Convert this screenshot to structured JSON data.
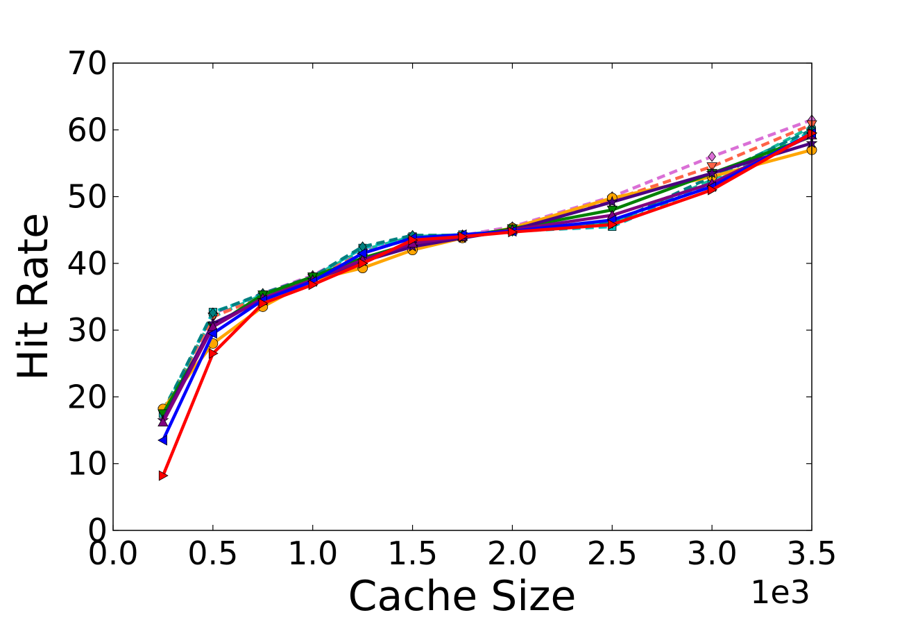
{
  "chart_data": {
    "type": "line",
    "title": "",
    "xlabel": "Cache Size",
    "ylabel": "Hit Rate",
    "x_offset_label": "1e3",
    "xlim": [
      0.0,
      3.5
    ],
    "ylim": [
      0,
      70
    ],
    "x_ticks": [
      "0.0",
      "0.5",
      "1.0",
      "1.5",
      "2.0",
      "2.5",
      "3.0",
      "3.5"
    ],
    "y_ticks": [
      "0",
      "10",
      "20",
      "30",
      "40",
      "50",
      "60",
      "70"
    ],
    "grid": false,
    "legend": "none",
    "x": [
      0.25,
      0.5,
      0.75,
      1.0,
      1.25,
      1.5,
      1.75,
      2.0,
      2.5,
      3.0,
      3.5
    ],
    "series": [
      {
        "color": "#1abc9c",
        "dash": "dashed",
        "marker": "diamond",
        "values": [
          18.0,
          32.0,
          35.3,
          38.0,
          42.0,
          44.0,
          44.3,
          45.0,
          46.0,
          52.5,
          60.5
        ]
      },
      {
        "color": "#da70d6",
        "dash": "dashed",
        "marker": "diamond",
        "values": [
          17.5,
          32.5,
          35.5,
          38.2,
          42.2,
          44.0,
          44.2,
          45.5,
          50.0,
          56.0,
          61.5
        ]
      },
      {
        "color": "#ff6347",
        "dash": "dashed",
        "marker": "triangle-down",
        "values": [
          17.8,
          32.0,
          35.0,
          37.8,
          41.5,
          43.8,
          44.0,
          45.2,
          49.5,
          54.5,
          60.8
        ]
      },
      {
        "color": "#00bfbf",
        "dash": "dashed",
        "marker": "square",
        "values": [
          17.5,
          32.7,
          35.3,
          38.0,
          42.3,
          44.0,
          44.3,
          44.8,
          45.5,
          52.0,
          59.8
        ]
      },
      {
        "color": "#008080",
        "dash": "dashed",
        "marker": "diamond",
        "values": [
          17.7,
          32.6,
          35.5,
          38.0,
          42.5,
          44.2,
          44.2,
          44.8,
          46.0,
          53.0,
          60.0
        ]
      },
      {
        "color": "#ffa500",
        "dash": "solid",
        "marker": "circle",
        "values": [
          18.2,
          28.0,
          33.5,
          37.5,
          39.3,
          42.0,
          43.8,
          45.3,
          49.8,
          53.0,
          57.0
        ]
      },
      {
        "color": "#008000",
        "dash": "solid",
        "marker": "triangle-down",
        "values": [
          17.5,
          30.5,
          35.3,
          38.0,
          40.8,
          43.0,
          44.0,
          45.2,
          48.0,
          53.5,
          59.0
        ]
      },
      {
        "color": "#4b0082",
        "dash": "solid",
        "marker": "star",
        "values": [
          16.5,
          31.0,
          34.5,
          37.5,
          40.3,
          42.5,
          43.8,
          45.0,
          49.2,
          53.5,
          58.0
        ]
      },
      {
        "color": "#800080",
        "dash": "solid",
        "marker": "triangle-up",
        "values": [
          16.2,
          30.5,
          34.8,
          37.5,
          40.5,
          43.0,
          44.0,
          45.0,
          47.2,
          52.0,
          59.2
        ]
      },
      {
        "color": "#0000ff",
        "dash": "solid",
        "marker": "triangle-left",
        "values": [
          13.5,
          29.5,
          34.5,
          37.3,
          41.5,
          43.8,
          44.3,
          44.8,
          46.5,
          51.5,
          59.5
        ]
      },
      {
        "color": "#ff0000",
        "dash": "solid",
        "marker": "triangle-right",
        "values": [
          8.2,
          26.5,
          34.0,
          36.8,
          40.0,
          43.5,
          44.0,
          44.7,
          45.8,
          51.0,
          59.5
        ]
      }
    ]
  }
}
